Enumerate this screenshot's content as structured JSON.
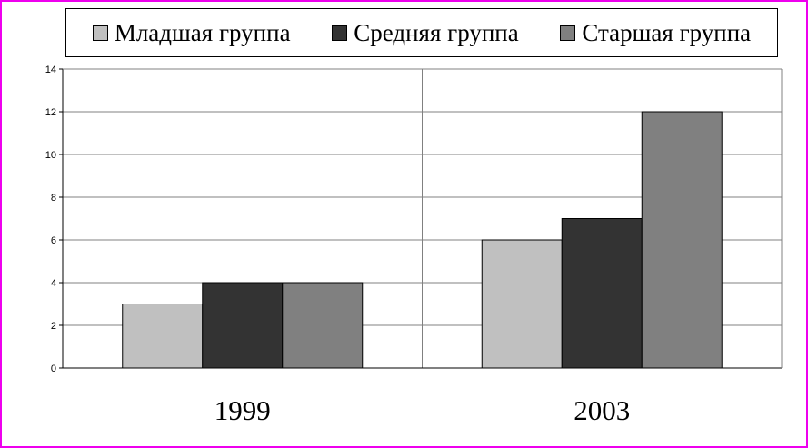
{
  "chart_data": {
    "type": "bar",
    "categories": [
      "1999",
      "2003"
    ],
    "series": [
      {
        "name": "Младшая группа",
        "values": [
          3,
          6
        ],
        "color": "#c0c0c0"
      },
      {
        "name": "Средняя группа",
        "values": [
          4,
          7
        ],
        "color": "#333333"
      },
      {
        "name": "Старшая группа",
        "values": [
          4,
          12
        ],
        "color": "#808080"
      }
    ],
    "ylim": [
      0,
      14
    ],
    "yticks": [
      "0",
      "2",
      "4",
      "6",
      "8",
      "10",
      "12",
      "14"
    ],
    "grid": true,
    "legend_position": "top",
    "title": "",
    "xlabel": "",
    "ylabel": ""
  }
}
